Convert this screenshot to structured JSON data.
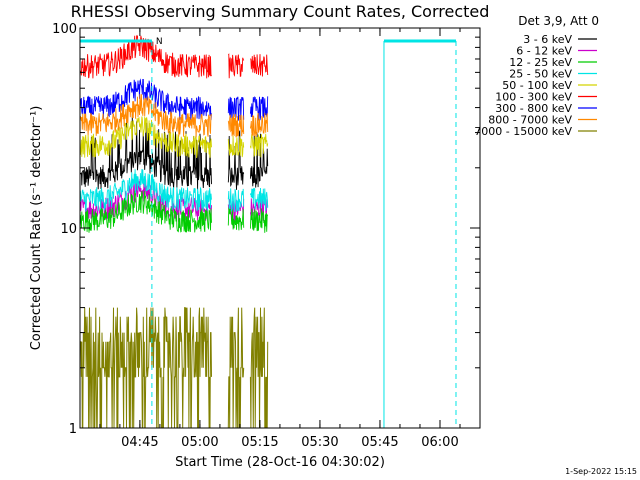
{
  "chart_data": {
    "type": "line",
    "title": "RHESSI Observing Summary Count Rates, Corrected",
    "xlabel": "Start Time (28-Oct-16 04:30:02)",
    "ylabel": "Corrected Count Rate (s⁻¹ detector⁻¹)",
    "y_scale": "log",
    "ylim": [
      1,
      100
    ],
    "xlim": [
      "04:30:02",
      "06:10:00"
    ],
    "x_ticks": [
      "04:45",
      "05:00",
      "05:15",
      "05:30",
      "05:45",
      "06:00"
    ],
    "y_ticks": [
      "1",
      "10",
      "100"
    ],
    "legend_title": "Det 3,9, Att 0",
    "legend_position": "top-right outside",
    "series": [
      {
        "name": "3 - 6 keV",
        "color": "#000000",
        "level": 18
      },
      {
        "name": "6 - 12 keV",
        "color": "#cc00cc",
        "level": 12.5
      },
      {
        "name": "12 - 25 keV",
        "color": "#00cc00",
        "level": 11
      },
      {
        "name": "25 - 50 keV",
        "color": "#00e5e5",
        "level": 14
      },
      {
        "name": "50 - 100 keV",
        "color": "#d4d400",
        "level": 26
      },
      {
        "name": "100 - 300 keV",
        "color": "#ff0000",
        "level": 65
      },
      {
        "name": "300 - 800 keV",
        "color": "#0000ff",
        "level": 40
      },
      {
        "name": "800 - 7000 keV",
        "color": "#ff8800",
        "level": 33
      },
      {
        "name": "7000 - 15000 keV",
        "color": "#808000",
        "level": 2.2
      }
    ],
    "annotations": {
      "flag_label": "N",
      "saa_or_night_bars": [
        [
          "04:30:02",
          "04:48:00"
        ],
        [
          "05:46:00",
          "06:04:00"
        ]
      ]
    },
    "data_gaps": [
      [
        "05:03:00",
        "05:07:00"
      ],
      [
        "05:11:00",
        "05:12:30"
      ],
      [
        "05:17:00",
        "06:10:00"
      ]
    ]
  },
  "footer_date": "1-Sep-2022 15:15"
}
